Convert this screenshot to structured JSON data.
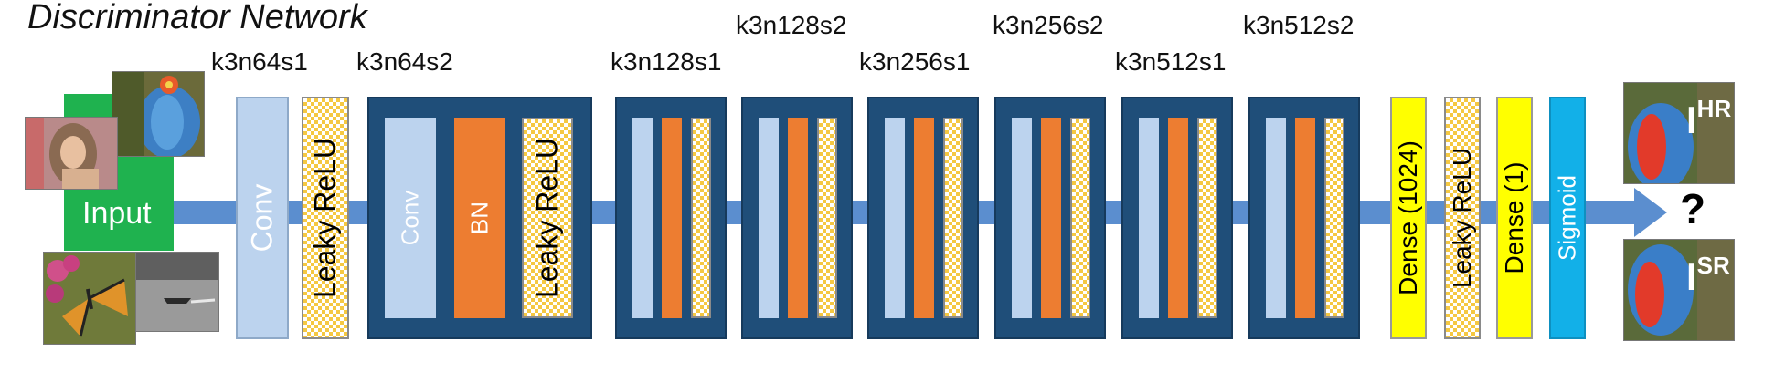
{
  "title": "Discriminator Network",
  "input_label": "Input",
  "layer_labels": {
    "l1": "k3n64s1",
    "l2": "k3n64s2",
    "l3": "k3n128s1",
    "l4": "k3n128s2",
    "l5": "k3n256s1",
    "l6": "k3n256s2",
    "l7": "k3n512s1",
    "l8": "k3n512s2"
  },
  "layers": {
    "conv": "Conv",
    "leaky_relu": "Leaky ReLU",
    "bn": "BN",
    "dense_1024": "Dense (1024)",
    "dense_1": "Dense (1)",
    "sigmoid": "Sigmoid"
  },
  "output": {
    "question": "?",
    "hr_base": "I",
    "hr_sup": "HR",
    "sr_base": "I",
    "sr_sup": "SR"
  },
  "colors": {
    "arrow": "#5b8ecf",
    "conv": "#bcd3ee",
    "block": "#1f4e79",
    "bn": "#ed7d31",
    "leaky_relu": "#f5c842",
    "dense": "#ffff00",
    "sigmoid": "#12b0e8",
    "input": "#1fb24f"
  },
  "icons": [
    "mandrill-photo",
    "portrait-photo",
    "butterfly-photo",
    "boat-photo"
  ]
}
